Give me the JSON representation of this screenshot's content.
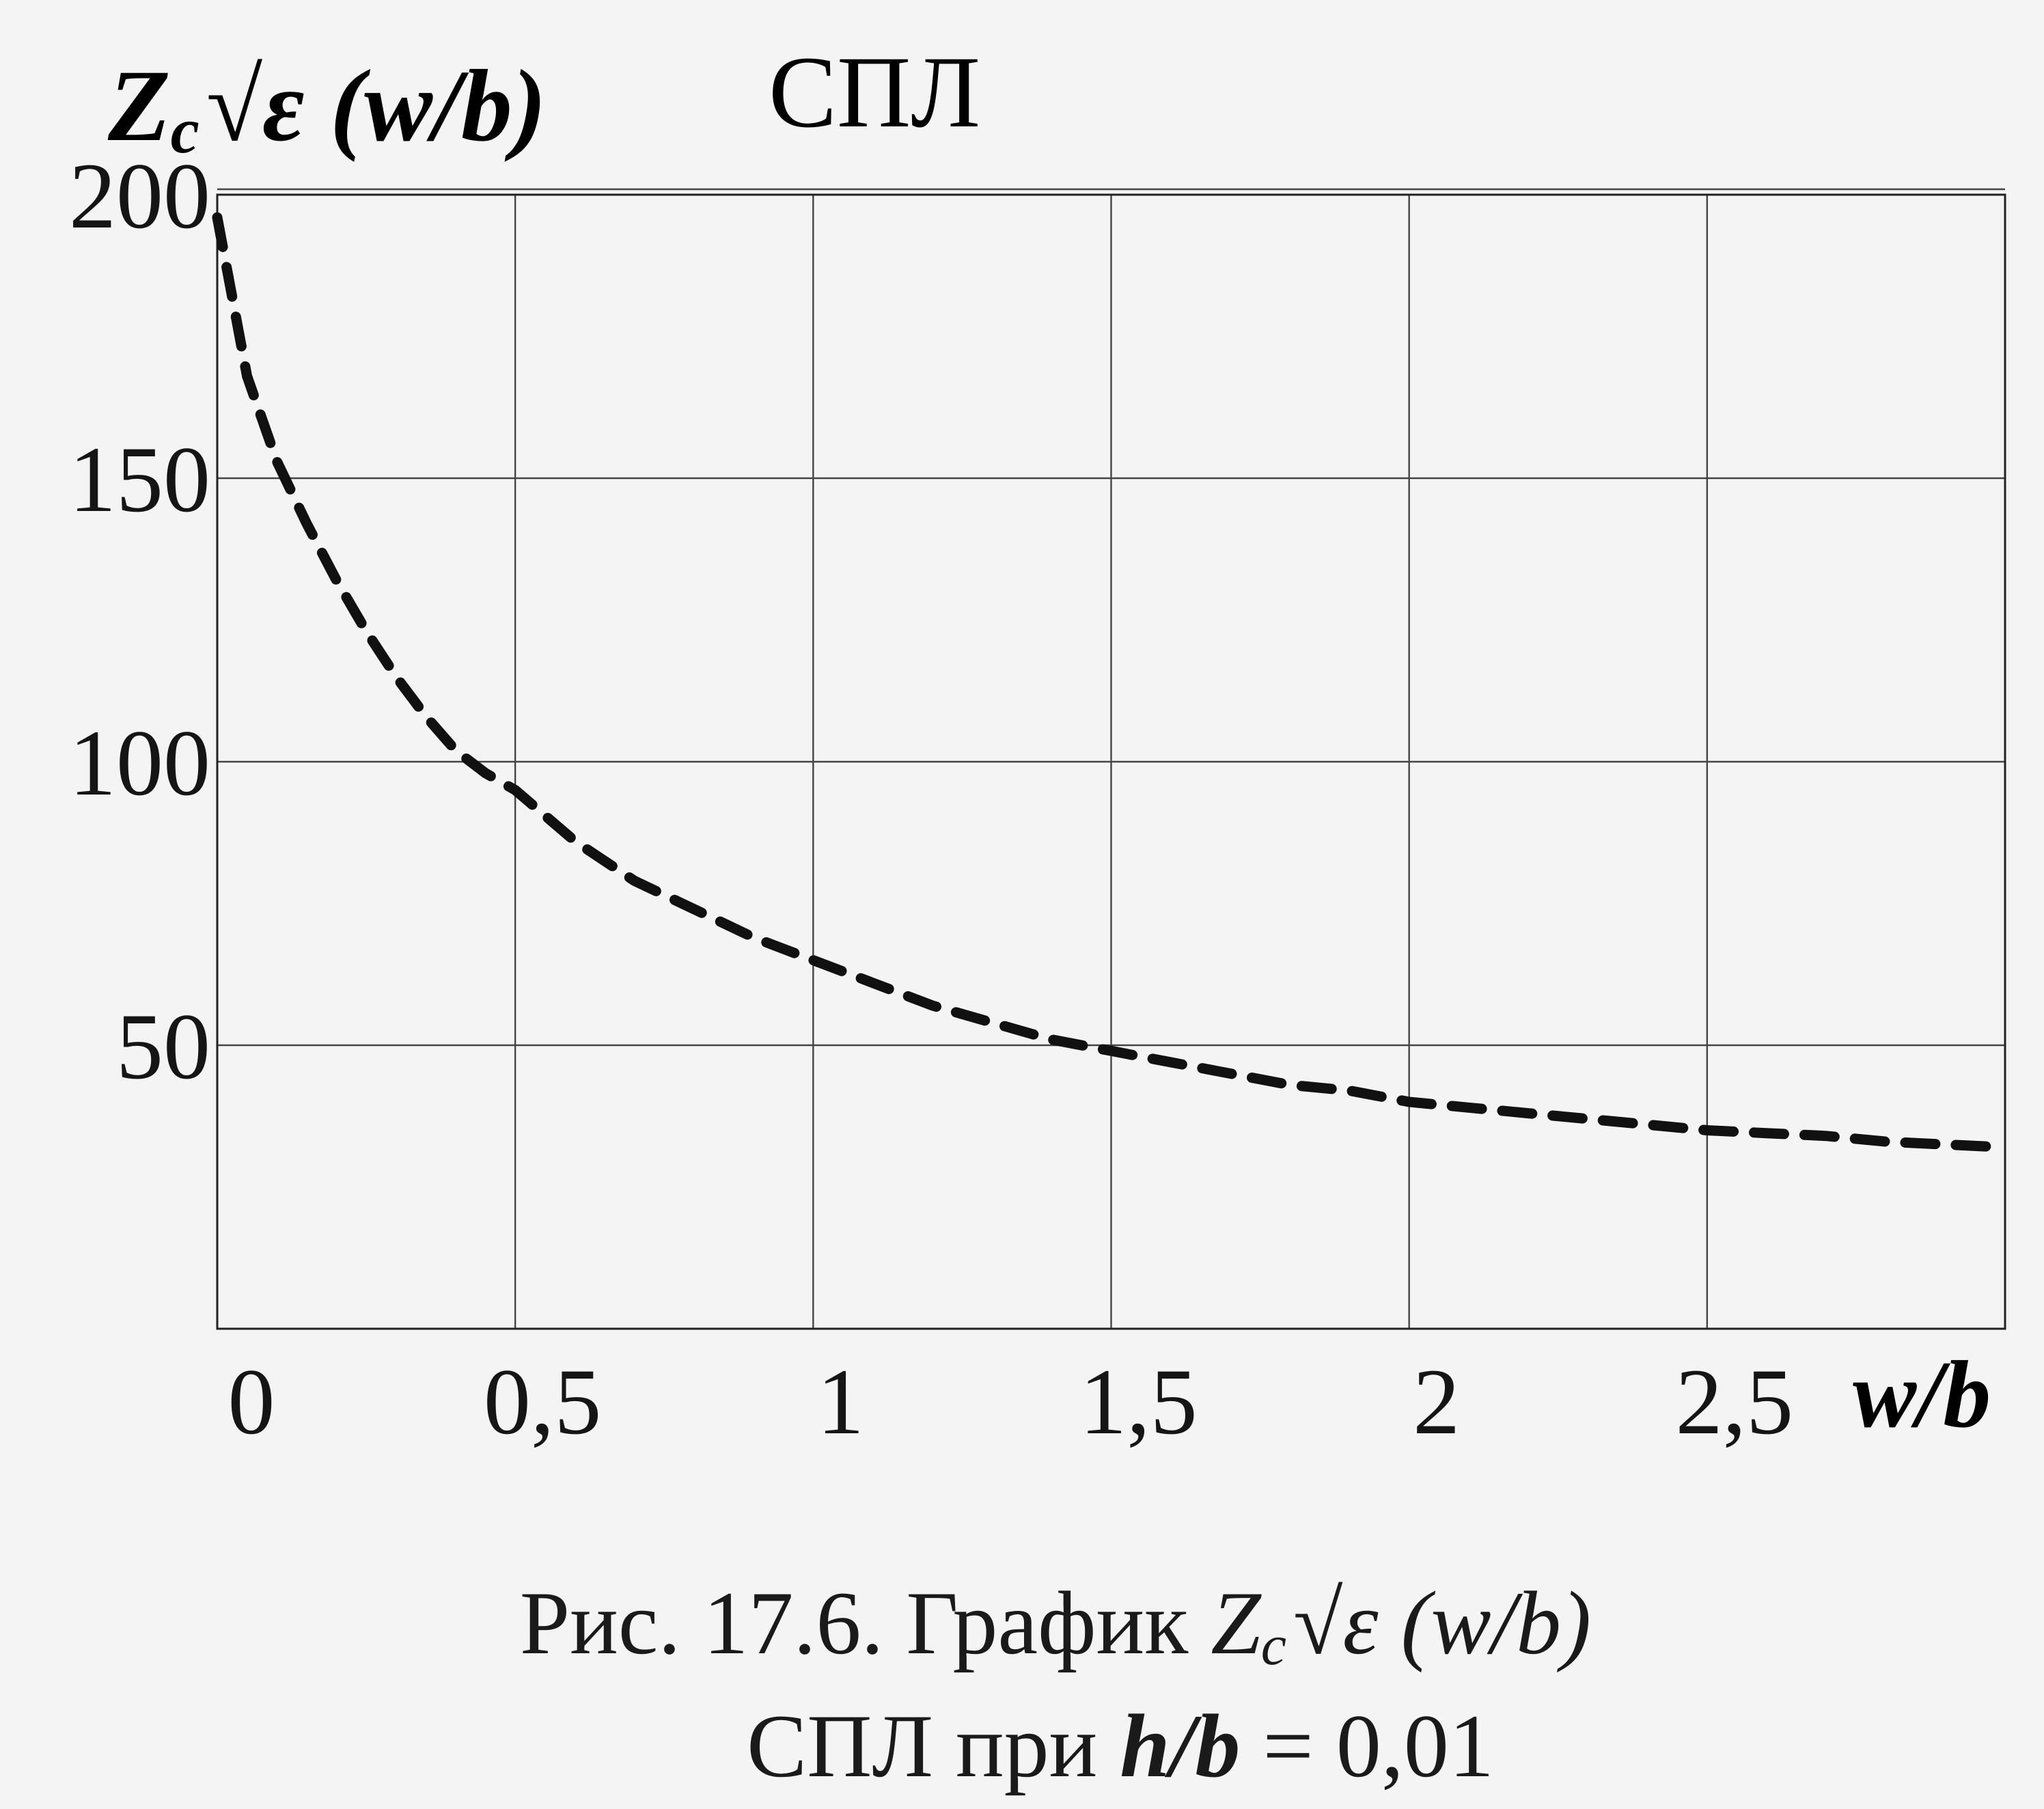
{
  "chart_data": {
    "type": "line",
    "title": "СПЛ",
    "ylabel": "Zc √ε (w/b)",
    "xlabel": "w/b",
    "xlim": [
      0,
      3
    ],
    "ylim": [
      0,
      200
    ],
    "x_ticks": [
      "0",
      "0,5",
      "1",
      "1,5",
      "2",
      "2,5"
    ],
    "y_ticks": [
      "200",
      "150",
      "100",
      "50"
    ],
    "grid": true,
    "line_style": "dashed",
    "color": "#111111",
    "series": [
      {
        "x": [
          0,
          0.05,
          0.1,
          0.15,
          0.2,
          0.25,
          0.3,
          0.35,
          0.4,
          0.45,
          0.5,
          0.6,
          0.7,
          0.8,
          0.9,
          1.0,
          1.1,
          1.2,
          1.3,
          1.4,
          1.5,
          1.6,
          1.7,
          1.8,
          1.9,
          2.0,
          2.1,
          2.2,
          2.3,
          2.4,
          2.5,
          2.6,
          2.7,
          2.8,
          2.9,
          3.0
        ],
        "y": [
          196,
          168,
          153,
          142,
          132,
          123,
          115,
          108,
          102,
          98,
          95,
          86,
          79,
          74,
          69,
          65,
          61,
          57,
          54,
          51,
          49,
          47,
          45,
          43,
          42,
          40,
          39,
          38,
          37,
          36,
          35,
          34.5,
          34,
          33,
          32.5,
          32
        ]
      }
    ]
  },
  "caption": {
    "line1_prefix": "Рис. 17.6. График ",
    "line1_z": "Z",
    "line1_sub": "c",
    "line1_root": "√",
    "line1_eps": "ε",
    "line1_suffix": " (w/b)",
    "line2_prefix": "СПЛ  при ",
    "line2_var": "h/b",
    "line2_suffix": " = 0,01"
  },
  "ylabel_parts": {
    "z": "Z",
    "sub": "c",
    "root": "√",
    "eps": "ε",
    "arg": " (w/b)"
  }
}
